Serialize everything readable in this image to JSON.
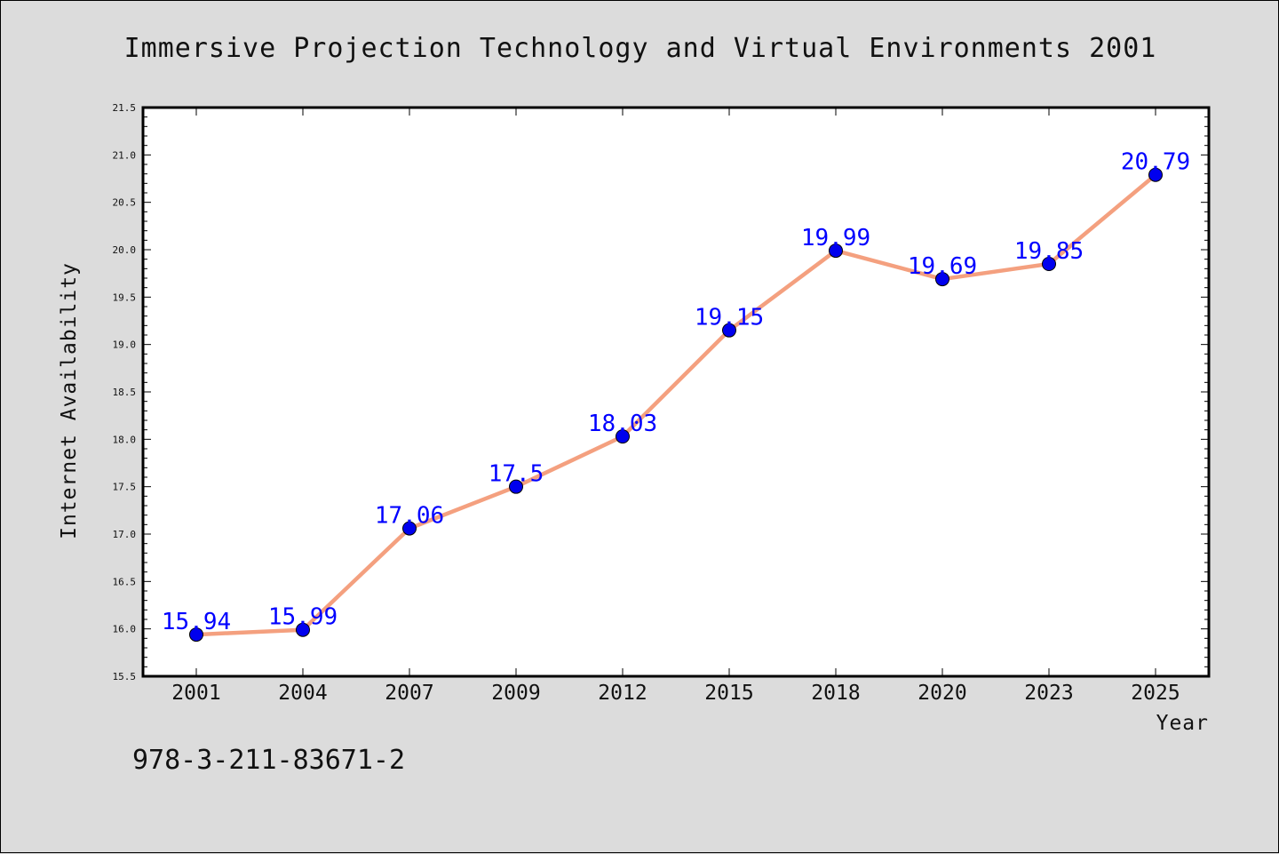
{
  "chart_data": {
    "type": "line",
    "title": "Immersive Projection Technology and Virtual Environments 2001",
    "xlabel": "Year",
    "ylabel": "Internet Availability",
    "ylim": [
      15.5,
      21.5
    ],
    "ytick_step": 0.5,
    "yticks": [
      "15.5",
      "16.0",
      "16.5",
      "17.0",
      "17.5",
      "18.0",
      "18.5",
      "19.0",
      "19.5",
      "20.0",
      "20.5",
      "21.0",
      "21.5"
    ],
    "categories": [
      "2001",
      "2004",
      "2007",
      "2009",
      "2012",
      "2015",
      "2018",
      "2020",
      "2023",
      "2025"
    ],
    "values": [
      15.94,
      15.99,
      17.06,
      17.5,
      18.03,
      19.15,
      19.99,
      19.69,
      19.85,
      20.79
    ],
    "data_labels": [
      "15.94",
      "15.99",
      "17.06",
      "17.5",
      "18.03",
      "19.15",
      "19.99",
      "19.69",
      "19.85",
      "20.79"
    ],
    "line_color": "#f4a07f",
    "marker_color": "#0000ee",
    "label_color": "#0000ff",
    "grid": false
  },
  "footnote": "978-3-211-83671-2"
}
